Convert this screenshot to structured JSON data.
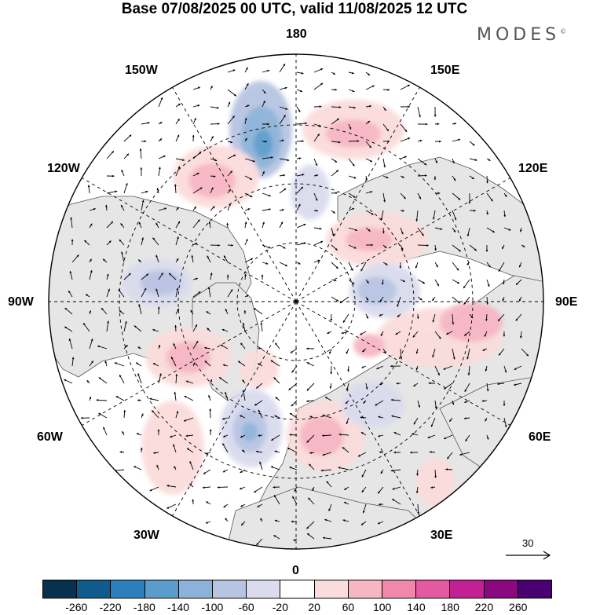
{
  "title": "Base 07/08/2025 00 UTC, valid 11/08/2025 12 UTC",
  "brand": {
    "name": "MODES",
    "mark": "©"
  },
  "longitude_labels": {
    "top": "180",
    "bottom": "0",
    "left": "90W",
    "right": "90E",
    "upper_left_1": "150W",
    "upper_left_2": "120W",
    "upper_right_1": "150E",
    "upper_right_2": "120E",
    "lower_left_1": "60W",
    "lower_left_2": "30W",
    "lower_right_1": "60E",
    "lower_right_2": "30E"
  },
  "reference_vector": {
    "label": "30"
  },
  "colorbar": {
    "colors": [
      "#08304f",
      "#0f5b8e",
      "#2a7fbc",
      "#5a9ccc",
      "#8db2d9",
      "#b7c4e2",
      "#dadcee",
      "#ffffff",
      "#fbdcdc",
      "#f7b6c3",
      "#f087ad",
      "#e35aa0",
      "#c42095",
      "#8a0880",
      "#4a0070"
    ],
    "ticks": [
      "-260",
      "-220",
      "-180",
      "-140",
      "-100",
      "-60",
      "-20",
      "20",
      "60",
      "100",
      "140",
      "180",
      "220",
      "260"
    ]
  },
  "colors": {
    "land": "#e6e6e6",
    "ocean": "#ffffff",
    "grid": "#000000"
  }
}
